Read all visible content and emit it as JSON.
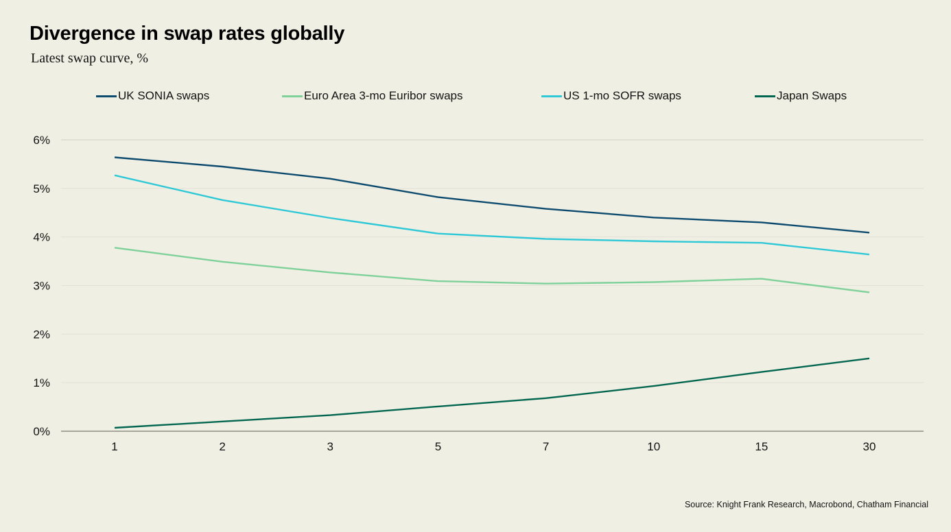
{
  "chart_data": {
    "type": "line",
    "title": "Divergence in swap rates globally",
    "subtitle": "Latest swap curve, %",
    "xlabel": "",
    "ylabel": "",
    "categories": [
      "1",
      "2",
      "3",
      "5",
      "7",
      "10",
      "15",
      "30"
    ],
    "ylim": [
      0,
      6
    ],
    "yticks": [
      0,
      1,
      2,
      3,
      4,
      5,
      6
    ],
    "ytick_labels": [
      "0%",
      "1%",
      "2%",
      "3%",
      "4%",
      "5%",
      "6%"
    ],
    "grid": true,
    "legend_position": "top",
    "series": [
      {
        "name": "UK SONIA swaps",
        "color": "#0c4a6e",
        "values": [
          5.64,
          5.45,
          5.2,
          4.82,
          4.58,
          4.4,
          4.3,
          4.09
        ]
      },
      {
        "name": "Euro Area 3-mo Euribor swaps",
        "color": "#7fd19a",
        "values": [
          3.78,
          3.49,
          3.27,
          3.09,
          3.04,
          3.07,
          3.14,
          2.86
        ]
      },
      {
        "name": "US 1-mo SOFR swaps",
        "color": "#2ec8d6",
        "values": [
          5.27,
          4.76,
          4.39,
          4.07,
          3.96,
          3.91,
          3.88,
          3.64
        ]
      },
      {
        "name": "Japan Swaps",
        "color": "#00664f",
        "values": [
          0.07,
          0.2,
          0.33,
          0.51,
          0.68,
          0.93,
          1.22,
          1.5
        ]
      }
    ]
  },
  "source": "Source: Knight Frank Research, Macrobond, Chatham Financial"
}
